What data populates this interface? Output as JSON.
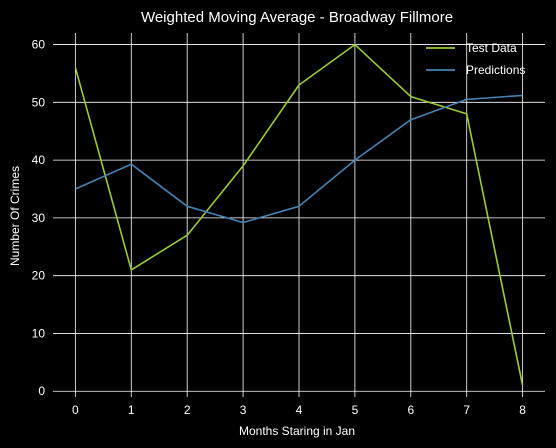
{
  "chart_data": {
    "type": "line",
    "title": "Weighted Moving Average - Broadway Fillmore",
    "xlabel": "Months Staring in Jan",
    "ylabel": "Number Of Crimes",
    "x": [
      0,
      1,
      2,
      3,
      4,
      5,
      6,
      7,
      8
    ],
    "xlim": [
      -0.4,
      8.4
    ],
    "ylim": [
      -1,
      62
    ],
    "xticks": [
      0,
      1,
      2,
      3,
      4,
      5,
      6,
      7,
      8
    ],
    "yticks": [
      0,
      10,
      20,
      30,
      40,
      50,
      60
    ],
    "grid": true,
    "legend_position": "top-right",
    "series": [
      {
        "name": "Test Data",
        "color": "#9acd32",
        "values": [
          56,
          21,
          27,
          39,
          53,
          60,
          51,
          48,
          1
        ]
      },
      {
        "name": "Predictions",
        "color": "#4682b4",
        "values": [
          35,
          39.3,
          32,
          29.2,
          32,
          40,
          47,
          50.5,
          51.2
        ]
      }
    ]
  }
}
